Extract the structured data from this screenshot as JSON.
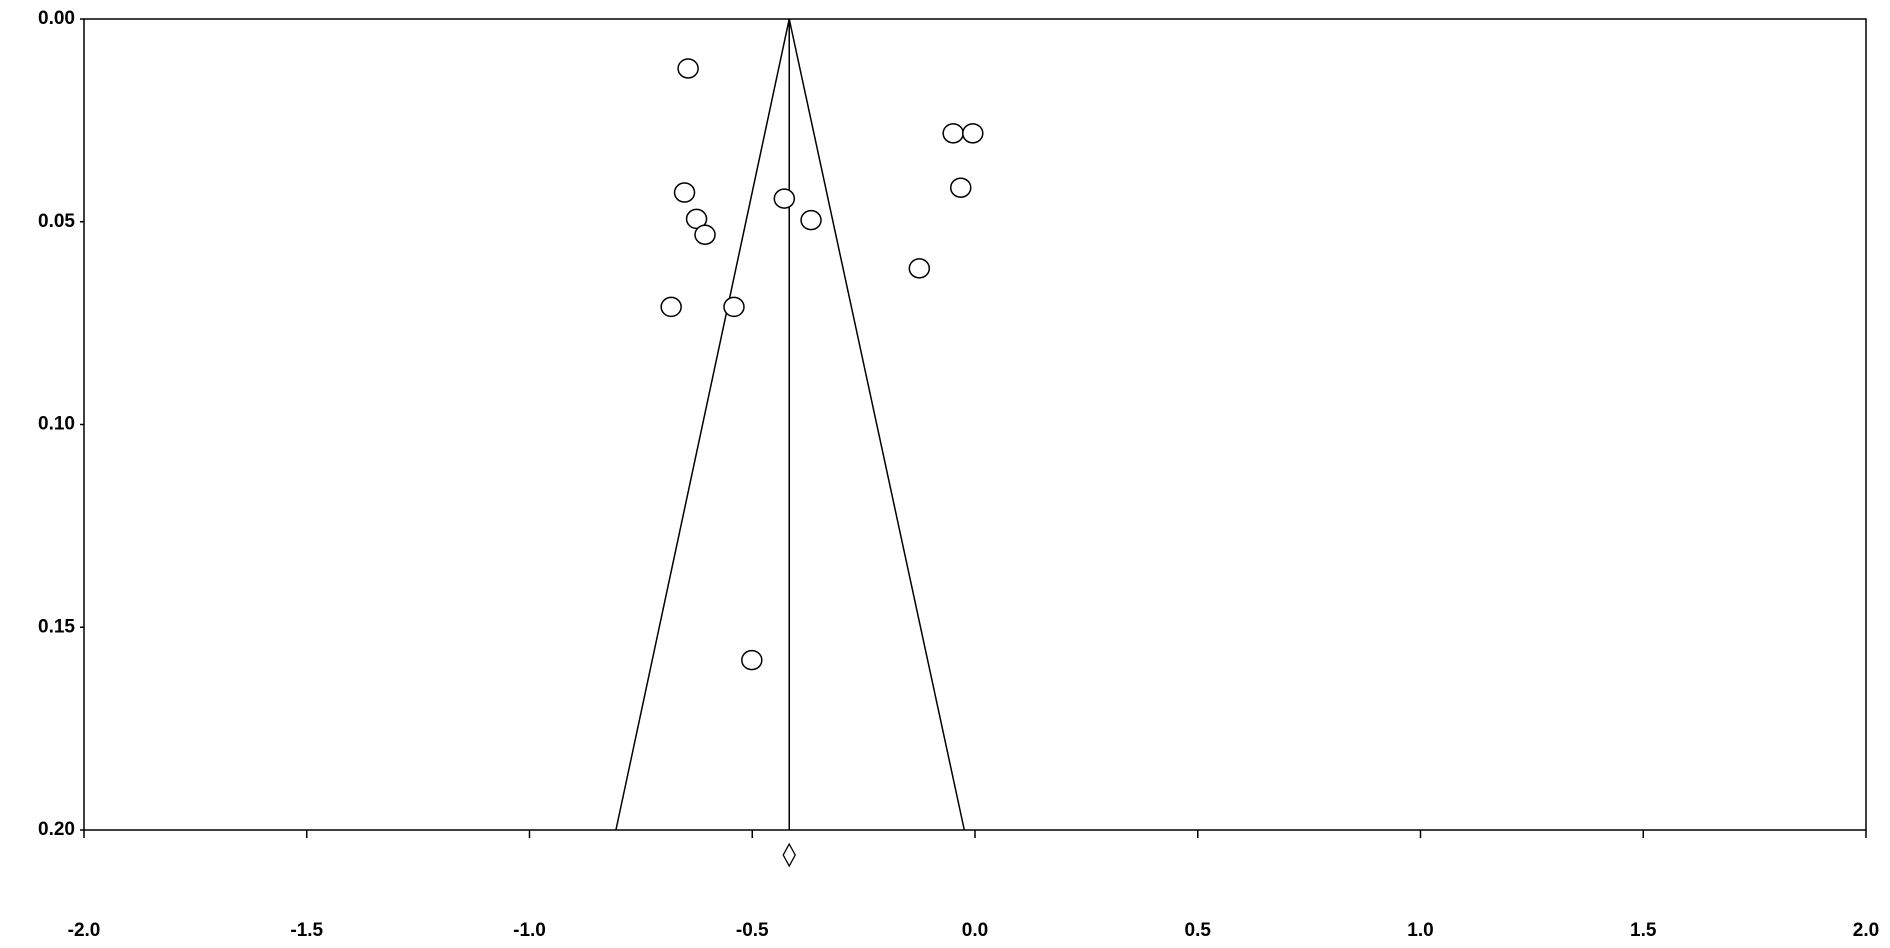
{
  "chart_data": {
    "type": "funnel-scatter",
    "x": [
      -0.644,
      -0.049,
      -0.005,
      -0.652,
      -0.032,
      -0.428,
      -0.625,
      -0.368,
      -0.606,
      -0.125,
      -0.682,
      -0.541,
      -0.501
    ],
    "y": [
      0.0122,
      0.0282,
      0.0282,
      0.0428,
      0.0416,
      0.0443,
      0.0493,
      0.0496,
      0.0532,
      0.0615,
      0.071,
      0.071,
      0.1581
    ],
    "pooled_effect": -0.417,
    "funnel": {
      "x": [
        -0.806,
        -0.417,
        -0.024
      ],
      "y": [
        0.2,
        0,
        0.2
      ]
    },
    "xlim": [
      -2,
      2
    ],
    "ylim": [
      0,
      0.2
    ],
    "y_inverted": true,
    "xticks": [
      {
        "value": -2,
        "label": "-2.0"
      },
      {
        "value": -1.5,
        "label": "-1.5"
      },
      {
        "value": -1,
        "label": "-1.0"
      },
      {
        "value": -0.5,
        "label": "-0.5"
      },
      {
        "value": 0,
        "label": "0.0"
      },
      {
        "value": 0.5,
        "label": "0.5"
      },
      {
        "value": 1,
        "label": "1.0"
      },
      {
        "value": 1.5,
        "label": "1.5"
      },
      {
        "value": 2,
        "label": "2.0"
      }
    ],
    "yticks": [
      {
        "value": 0,
        "label": "0.00"
      },
      {
        "value": 0.05,
        "label": "0.05"
      },
      {
        "value": 0.1,
        "label": "0.10"
      },
      {
        "value": 0.15,
        "label": "0.15"
      },
      {
        "value": 0.2,
        "label": "0.20"
      }
    ],
    "color": "#000000"
  }
}
